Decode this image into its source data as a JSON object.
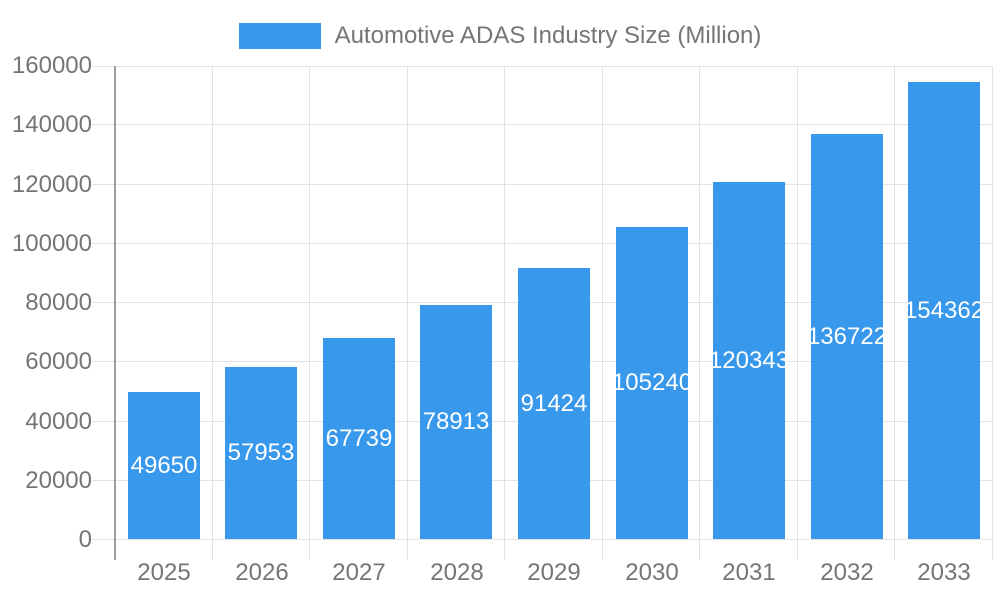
{
  "chart_data": {
    "type": "bar",
    "title": "Automotive ADAS Industry Size (Million)",
    "categories": [
      "2025",
      "2026",
      "2027",
      "2028",
      "2029",
      "2030",
      "2031",
      "2032",
      "2033"
    ],
    "values": [
      49650,
      57953,
      67739,
      78913,
      91424,
      105240,
      120343,
      136722,
      154362
    ],
    "xlabel": "",
    "ylabel": "",
    "ylim": [
      0,
      160000
    ],
    "ytick_step": 20000,
    "yticks": [
      "0",
      "20000",
      "40000",
      "60000",
      "80000",
      "100000",
      "120000",
      "140000",
      "160000"
    ],
    "grid": true,
    "legend_position": "top",
    "value_labels_inside_bars": true,
    "colors": {
      "bar": "#3898EC",
      "value_label": "#FFFFFF",
      "axis_label": "#757575",
      "gridline": "#E3E3E3",
      "axis_line": "#9E9E9E",
      "background": "#FFFFFF"
    }
  }
}
